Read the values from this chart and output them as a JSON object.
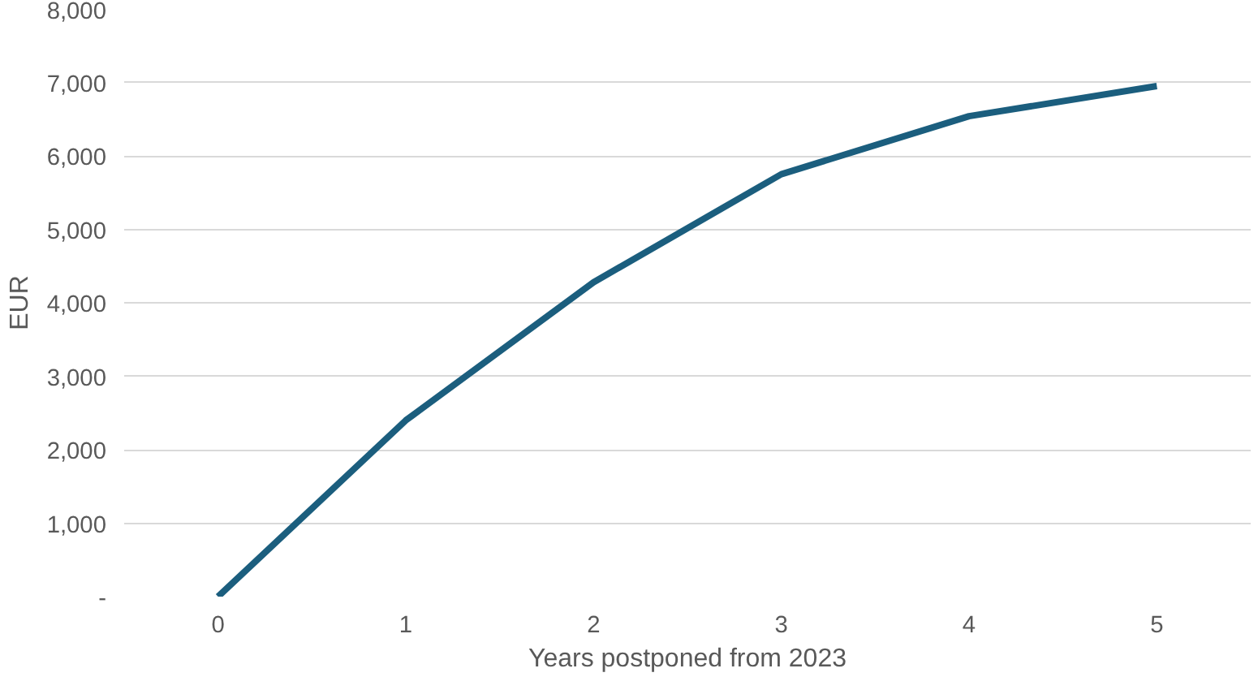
{
  "chart_data": {
    "type": "line",
    "xlabel": "Years postponed from 2023",
    "ylabel": "EUR",
    "categories": [
      "0",
      "1",
      "2",
      "3",
      "4",
      "5"
    ],
    "series": [
      {
        "color": "#1b5e7e",
        "values": [
          0,
          2400,
          4280,
          5750,
          6540,
          6950
        ]
      }
    ],
    "ylim": [
      0,
      8000
    ],
    "yticks": [
      {
        "value": 0,
        "label": "-"
      },
      {
        "value": 1000,
        "label": "1,000"
      },
      {
        "value": 2000,
        "label": "2,000"
      },
      {
        "value": 3000,
        "label": "3,000"
      },
      {
        "value": 4000,
        "label": "4,000"
      },
      {
        "value": 5000,
        "label": "5,000"
      },
      {
        "value": 6000,
        "label": "6,000"
      },
      {
        "value": 7000,
        "label": "7,000"
      },
      {
        "value": 8000,
        "label": "8,000"
      }
    ],
    "grid": "y",
    "marker": "none",
    "line_style": "solid"
  }
}
